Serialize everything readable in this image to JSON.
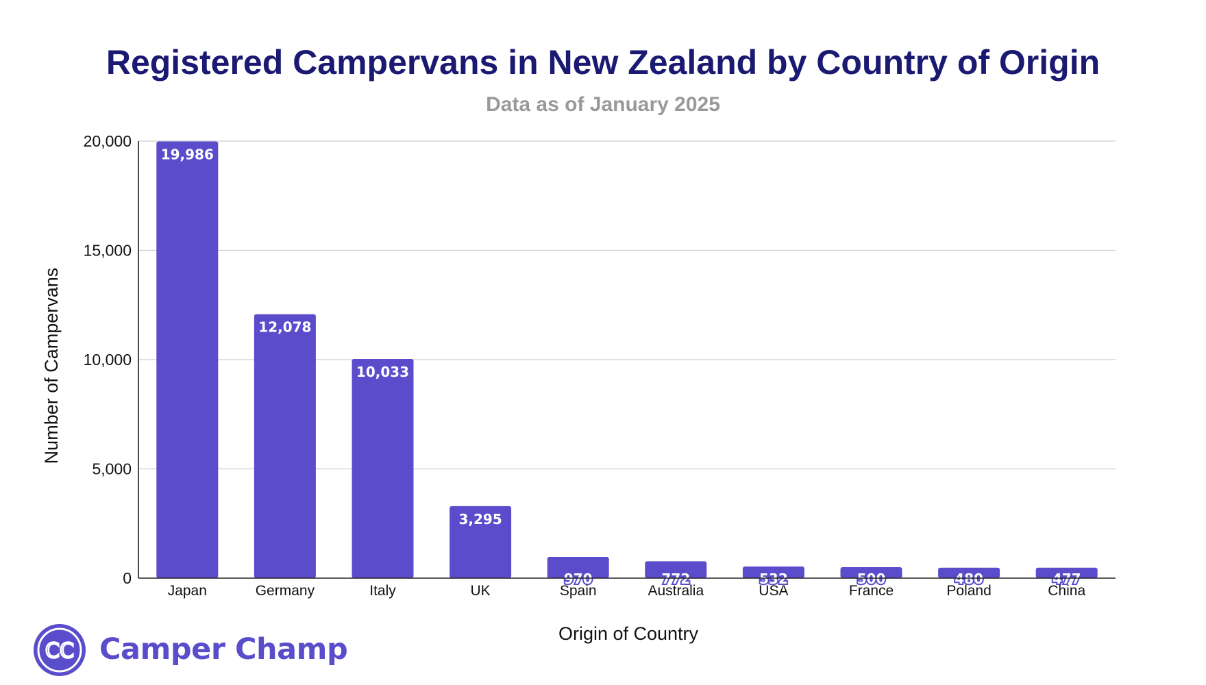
{
  "chart_data": {
    "type": "bar",
    "title": "Registered Campervans in New Zealand by Country of Origin",
    "subtitle": "Data as of January 2025",
    "xlabel": "Origin of Country",
    "ylabel": "Number of Campervans",
    "categories": [
      "Japan",
      "Germany",
      "Italy",
      "UK",
      "Spain",
      "Australia",
      "USA",
      "France",
      "Poland",
      "China"
    ],
    "values": [
      19986,
      12078,
      10033,
      3295,
      970,
      772,
      532,
      500,
      480,
      477
    ],
    "value_labels": [
      "19,986",
      "12,078",
      "10,033",
      "3,295",
      "970",
      "772",
      "532",
      "500",
      "480",
      "477"
    ],
    "ylim": [
      0,
      20000
    ],
    "yticks": [
      0,
      5000,
      10000,
      15000,
      20000
    ],
    "ytick_labels": [
      "0",
      "5,000",
      "10,000",
      "15,000",
      "20,000"
    ],
    "grid": true,
    "bar_color": "#5b4ccc"
  },
  "branding": {
    "logo_text": "CC",
    "name": "Camper Champ",
    "color": "#5a4dcc"
  }
}
